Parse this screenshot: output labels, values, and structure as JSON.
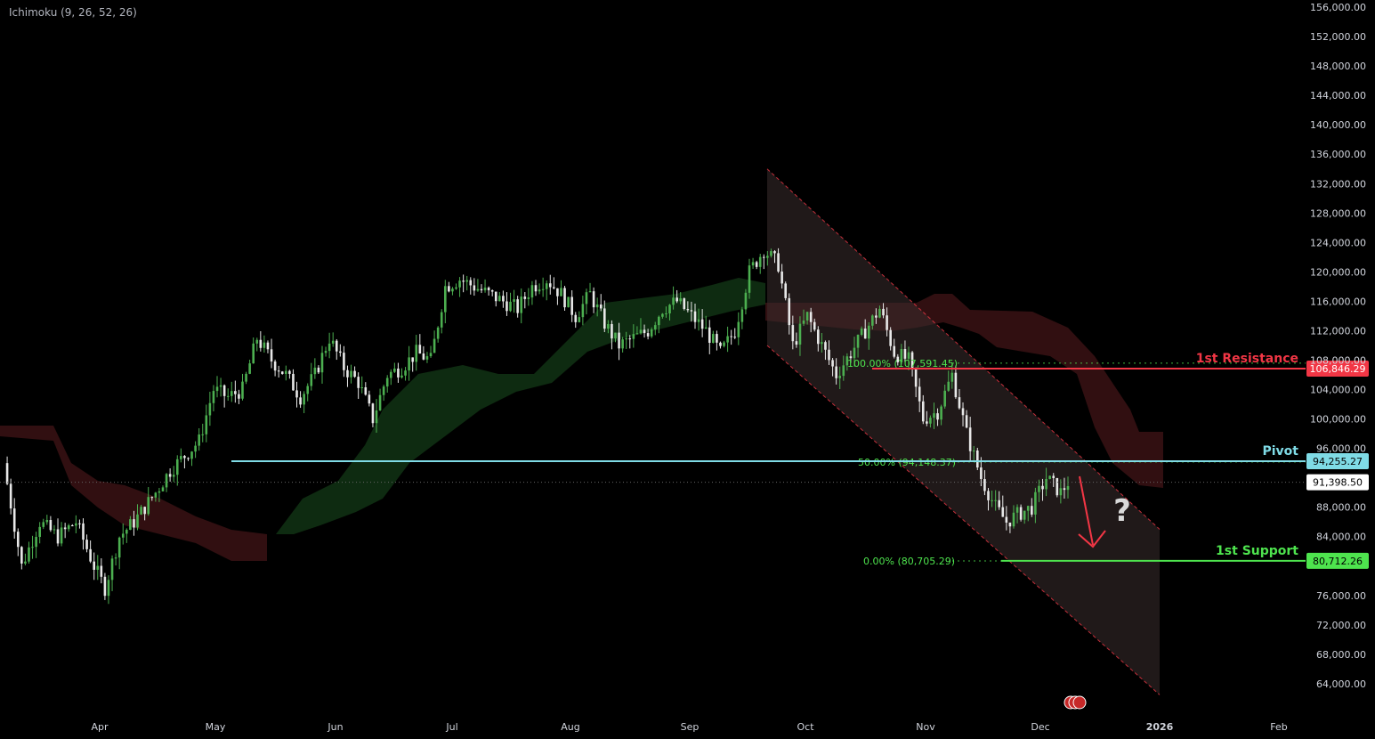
{
  "indicator": {
    "label": "Ichimoku (9, 26, 52, 26)"
  },
  "colors": {
    "background": "#000000",
    "bull": "#4caf50",
    "bear": "#e8e8e8",
    "resistance": "#f23645",
    "pivot": "#7fdbe6",
    "support": "#4ee44e",
    "cloud_bull": "#0f2d12",
    "cloud_bear": "#3a1214",
    "channel": "#2a2222",
    "axis_text": "#d1d4dc"
  },
  "chart_data": {
    "type": "candlestick",
    "y_axis": {
      "min": 62000,
      "max": 156000,
      "ticks": [
        156000,
        152000,
        148000,
        144000,
        140000,
        136000,
        132000,
        128000,
        124000,
        120000,
        116000,
        112000,
        108000,
        104000,
        100000,
        96000,
        88000,
        84000,
        76000,
        72000,
        68000,
        64000
      ],
      "tick_labels": [
        "156,000.00",
        "152,000.00",
        "148,000.00",
        "144,000.00",
        "140,000.00",
        "136,000.00",
        "132,000.00",
        "128,000.00",
        "124,000.00",
        "120,000.00",
        "116,000.00",
        "112,000.00",
        "108,000.00",
        "104,000.00",
        "100,000.00",
        "96,000.00",
        "88,000.00",
        "84,000.00",
        "76,000.00",
        "72,000.00",
        "68,000.00",
        "64,000.00"
      ]
    },
    "x_axis": {
      "labels": [
        "Apr",
        "May",
        "Jun",
        "Jul",
        "Aug",
        "Sep",
        "Oct",
        "Nov",
        "Dec",
        "2026",
        "Feb"
      ]
    },
    "close_trend": [
      [
        0,
        94000
      ],
      [
        5,
        80000
      ],
      [
        10,
        86000
      ],
      [
        15,
        84000
      ],
      [
        20,
        86000
      ],
      [
        25,
        80000
      ],
      [
        28,
        77000
      ],
      [
        32,
        84000
      ],
      [
        36,
        86000
      ],
      [
        42,
        90000
      ],
      [
        46,
        93000
      ],
      [
        50,
        95000
      ],
      [
        54,
        97000
      ],
      [
        58,
        104000
      ],
      [
        62,
        103000
      ],
      [
        66,
        104000
      ],
      [
        70,
        111000
      ],
      [
        74,
        108000
      ],
      [
        78,
        106000
      ],
      [
        82,
        103000
      ],
      [
        86,
        106000
      ],
      [
        90,
        111000
      ],
      [
        94,
        107000
      ],
      [
        98,
        105000
      ],
      [
        102,
        100000
      ],
      [
        106,
        106000
      ],
      [
        110,
        107000
      ],
      [
        114,
        109000
      ],
      [
        118,
        108000
      ],
      [
        122,
        118000
      ],
      [
        126,
        119000
      ],
      [
        130,
        118000
      ],
      [
        134,
        117000
      ],
      [
        138,
        116000
      ],
      [
        142,
        115000
      ],
      [
        146,
        118000
      ],
      [
        150,
        119000
      ],
      [
        154,
        117000
      ],
      [
        158,
        114000
      ],
      [
        162,
        117000
      ],
      [
        166,
        113000
      ],
      [
        170,
        110000
      ],
      [
        174,
        111000
      ],
      [
        178,
        112000
      ],
      [
        182,
        115000
      ],
      [
        186,
        116000
      ],
      [
        190,
        114000
      ],
      [
        194,
        112000
      ],
      [
        198,
        109000
      ],
      [
        202,
        112000
      ],
      [
        206,
        120000
      ],
      [
        210,
        123000
      ],
      [
        214,
        121000
      ],
      [
        218,
        110000
      ],
      [
        222,
        114000
      ],
      [
        226,
        110000
      ],
      [
        230,
        106000
      ],
      [
        234,
        109000
      ],
      [
        238,
        112000
      ],
      [
        242,
        115000
      ],
      [
        246,
        109000
      ],
      [
        250,
        108000
      ],
      [
        254,
        100000
      ],
      [
        258,
        101000
      ],
      [
        262,
        106000
      ],
      [
        266,
        98000
      ],
      [
        270,
        92000
      ],
      [
        274,
        88000
      ],
      [
        277,
        86000
      ],
      [
        280,
        87000
      ],
      [
        284,
        88000
      ],
      [
        288,
        92000
      ],
      [
        292,
        90000
      ],
      [
        294,
        91398.5
      ]
    ],
    "last_price": {
      "value": 91398.5,
      "label": "91,398.50"
    },
    "channel": {
      "upper_start": [
        0.0,
        134000
      ],
      "upper_end": [
        1.0,
        85000
      ],
      "lower_start": [
        0.0,
        110000
      ],
      "lower_end": [
        1.0,
        62500
      ]
    },
    "levels": [
      {
        "name": "1st Resistance",
        "value": 106846.29,
        "value_label": "106,846.29",
        "kind": "resistance"
      },
      {
        "name": "Pivot",
        "value": 94255.27,
        "value_label": "94,255.27",
        "kind": "pivot"
      },
      {
        "name": "1st Support",
        "value": 80712.26,
        "value_label": "80,712.26",
        "kind": "support"
      }
    ],
    "fibonacci": [
      {
        "label": "100.00% (107,591.45)",
        "value": 107591.45
      },
      {
        "label": "50.00% (94,148.37)",
        "value": 94148.37
      },
      {
        "label": "0.00% (80,705.29)",
        "value": 80705.29
      }
    ],
    "annotation": {
      "question_mark": "?"
    }
  }
}
